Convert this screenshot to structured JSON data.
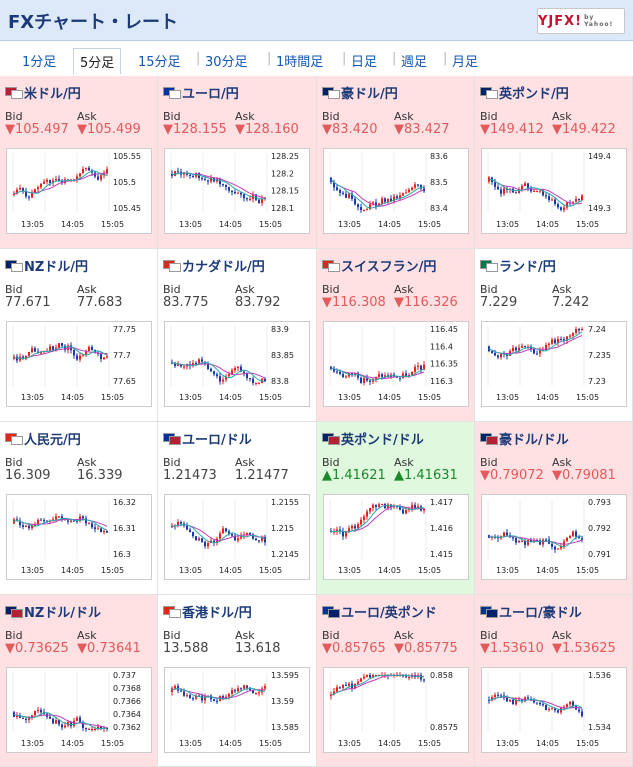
{
  "header": {
    "title": "FXチャート・レート",
    "logo_text": "YJFX!",
    "logo_sub": "by Yahoo!"
  },
  "tabs": [
    {
      "label": "1分足",
      "active": false
    },
    {
      "label": "5分足",
      "active": true
    },
    {
      "label": "15分足",
      "active": false
    },
    {
      "label": "30分足",
      "active": false
    },
    {
      "label": "1時間足",
      "active": false
    },
    {
      "label": "日足",
      "active": false
    },
    {
      "label": "週足",
      "active": false
    },
    {
      "label": "月足",
      "active": false
    }
  ],
  "labels": {
    "bid": "Bid",
    "ask": "Ask"
  },
  "panels": [
    {
      "name": "米ドル/円",
      "bid": "105.497",
      "ask": "105.499",
      "trend": "down",
      "bg": "pink",
      "flags": [
        "#b22234",
        "#ffffff"
      ],
      "ticks": [
        "105.55",
        "105.5",
        "105.45"
      ],
      "x_ticks": [
        "13:05",
        "14:05",
        "15:05"
      ]
    },
    {
      "name": "ユーロ/円",
      "bid": "128.155",
      "ask": "128.160",
      "trend": "down",
      "bg": "pink",
      "flags": [
        "#003399",
        "#ffffff"
      ],
      "ticks": [
        "128.25",
        "128.2",
        "128.15",
        "128.1"
      ],
      "x_ticks": [
        "13:05",
        "14:05",
        "15:05"
      ]
    },
    {
      "name": "豪ドル/円",
      "bid": "83.420",
      "ask": "83.427",
      "trend": "down",
      "bg": "pink",
      "flags": [
        "#012169",
        "#ffffff"
      ],
      "ticks": [
        "83.6",
        "83.5",
        "83.4"
      ],
      "x_ticks": [
        "13:05",
        "14:05",
        "15:05"
      ]
    },
    {
      "name": "英ポンド/円",
      "bid": "149.412",
      "ask": "149.422",
      "trend": "down",
      "bg": "pink",
      "flags": [
        "#012169",
        "#ffffff"
      ],
      "ticks": [
        "149.4",
        "149.3"
      ],
      "x_ticks": [
        "13:05",
        "14:05",
        "15:05"
      ]
    },
    {
      "name": "NZドル/円",
      "bid": "77.671",
      "ask": "77.683",
      "trend": "flat",
      "bg": "white",
      "flags": [
        "#012169",
        "#ffffff"
      ],
      "ticks": [
        "77.75",
        "77.7",
        "77.65"
      ],
      "x_ticks": [
        "13:05",
        "14:05",
        "15:05"
      ]
    },
    {
      "name": "カナダドル/円",
      "bid": "83.775",
      "ask": "83.792",
      "trend": "flat",
      "bg": "white",
      "flags": [
        "#d52b1e",
        "#ffffff"
      ],
      "ticks": [
        "83.9",
        "83.85",
        "83.8"
      ],
      "x_ticks": [
        "13:05",
        "14:05",
        "15:05"
      ]
    },
    {
      "name": "スイスフラン/円",
      "bid": "116.308",
      "ask": "116.326",
      "trend": "down",
      "bg": "pink",
      "flags": [
        "#d52b1e",
        "#ffffff"
      ],
      "ticks": [
        "116.45",
        "116.4",
        "116.35",
        "116.3"
      ],
      "x_ticks": [
        "13:05",
        "14:05",
        "15:05"
      ]
    },
    {
      "name": "ランド/円",
      "bid": "7.229",
      "ask": "7.242",
      "trend": "flat",
      "bg": "white",
      "flags": [
        "#007a4d",
        "#ffffff"
      ],
      "ticks": [
        "7.24",
        "7.235",
        "7.23"
      ],
      "x_ticks": [
        "13:05",
        "14:05",
        "15:05"
      ]
    },
    {
      "name": "人民元/円",
      "bid": "16.309",
      "ask": "16.339",
      "trend": "flat",
      "bg": "white",
      "flags": [
        "#de2910",
        "#ffffff"
      ],
      "ticks": [
        "16.32",
        "16.31",
        "16.3"
      ],
      "x_ticks": [
        "13:05",
        "14:05",
        "15:05"
      ]
    },
    {
      "name": "ユーロ/ドル",
      "bid": "1.21473",
      "ask": "1.21477",
      "trend": "flat",
      "bg": "white",
      "flags": [
        "#003399",
        "#b22234"
      ],
      "ticks": [
        "1.2155",
        "1.215",
        "1.2145"
      ],
      "x_ticks": [
        "13:05",
        "14:05",
        "15:05"
      ]
    },
    {
      "name": "英ポンド/ドル",
      "bid": "1.41621",
      "ask": "1.41631",
      "trend": "up",
      "bg": "green",
      "flags": [
        "#012169",
        "#b22234"
      ],
      "ticks": [
        "1.417",
        "1.416",
        "1.415"
      ],
      "x_ticks": [
        "13:05",
        "14:05",
        "15:05"
      ]
    },
    {
      "name": "豪ドル/ドル",
      "bid": "0.79072",
      "ask": "0.79081",
      "trend": "down",
      "bg": "pink",
      "flags": [
        "#012169",
        "#b22234"
      ],
      "ticks": [
        "0.793",
        "0.792",
        "0.791"
      ],
      "x_ticks": [
        "13:05",
        "14:05",
        "15:05"
      ]
    },
    {
      "name": "NZドル/ドル",
      "bid": "0.73625",
      "ask": "0.73641",
      "trend": "down",
      "bg": "pink",
      "flags": [
        "#012169",
        "#b22234"
      ],
      "ticks": [
        "0.737",
        "0.7368",
        "0.7366",
        "0.7364",
        "0.7362"
      ],
      "x_ticks": [
        "13:05",
        "14:05",
        "15:05"
      ]
    },
    {
      "name": "香港ドル/円",
      "bid": "13.588",
      "ask": "13.618",
      "trend": "flat",
      "bg": "white",
      "flags": [
        "#de2910",
        "#ffffff"
      ],
      "ticks": [
        "13.595",
        "13.59",
        "13.585"
      ],
      "x_ticks": [
        "13:05",
        "14:05",
        "15:05"
      ]
    },
    {
      "name": "ユーロ/英ポンド",
      "bid": "0.85765",
      "ask": "0.85775",
      "trend": "down",
      "bg": "pink",
      "flags": [
        "#003399",
        "#012169"
      ],
      "ticks": [
        "0.858",
        "0.8575"
      ],
      "x_ticks": [
        "13:05",
        "14:05",
        "15:05"
      ]
    },
    {
      "name": "ユーロ/豪ドル",
      "bid": "1.53610",
      "ask": "1.53625",
      "trend": "down",
      "bg": "pink",
      "flags": [
        "#003399",
        "#012169"
      ],
      "ticks": [
        "1.536",
        "1.534"
      ],
      "x_ticks": [
        "13:05",
        "14:05",
        "15:05"
      ]
    }
  ],
  "colors": {
    "pink_bg": "#ffe0e3",
    "green_bg": "#dff8de",
    "down": "#e35a5a",
    "up": "#1b8a2a",
    "candle_up": "#e32222",
    "candle_down": "#1a3aa8",
    "ma_line": "#c03fc0",
    "ma_line2": "#2aa8a8"
  }
}
